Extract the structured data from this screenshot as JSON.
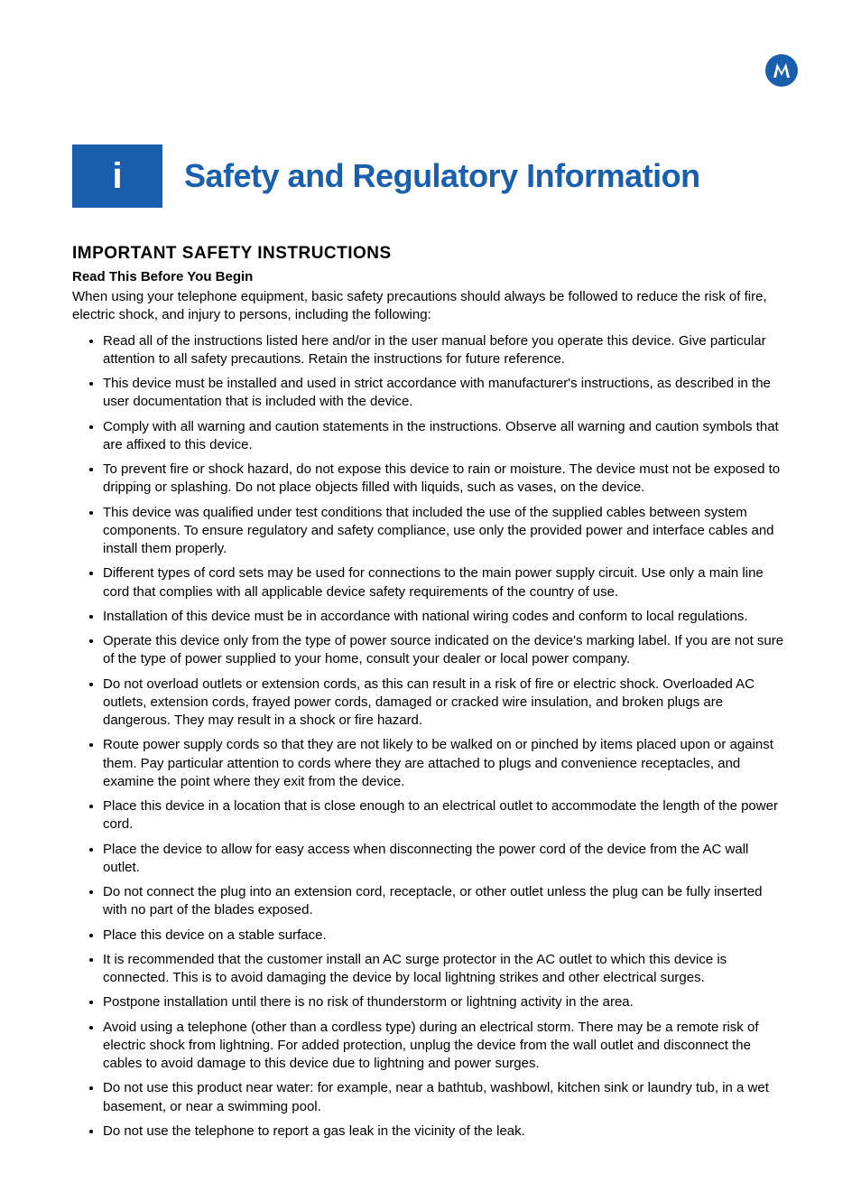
{
  "colors": {
    "brand_blue": "#1a5fad",
    "text_black": "#000000",
    "background": "#ffffff",
    "badge_text": "#ffffff"
  },
  "typography": {
    "title_fontsize": 36,
    "heading_fontsize": 19,
    "subheading_fontsize": 15,
    "body_fontsize": 15,
    "badge_fontsize": 40
  },
  "logo": {
    "name": "motorola-logo-icon"
  },
  "title_badge": {
    "letter": "i"
  },
  "main_title": "Safety and Regulatory Information",
  "section_heading": "IMPORTANT SAFETY INSTRUCTIONS",
  "sub_heading": "Read This Before You Begin",
  "intro_text": "When using your telephone equipment, basic safety precautions should always be followed to reduce the risk of fire, electric shock, and injury to persons, including the following:",
  "bullets": [
    "Read all of the instructions listed here and/or in the user manual before you operate this device. Give particular attention to all safety precautions. Retain the instructions for future reference.",
    "This device must be installed and used in strict accordance with manufacturer's instructions, as described in the user documentation that is included with the device.",
    "Comply with all warning and caution statements in the instructions. Observe all warning and caution symbols that are affixed to this device.",
    "To prevent fire or shock hazard, do not expose this device to rain or moisture. The device must not be exposed to dripping or splashing. Do not place objects filled with liquids, such as vases, on the device.",
    "This device was qualified under test conditions that included the use of the supplied cables between system components. To ensure regulatory and safety compliance, use only the provided power and interface cables and install them properly.",
    "Different types of cord sets may be used for connections to the main power supply circuit. Use only a main line cord that complies with all applicable device safety requirements of the country of use.",
    "Installation of this device must be in accordance with national wiring codes and conform to local regulations.",
    "Operate this device only from the type of power source indicated on the device's marking label. If you are not sure of the type of power supplied to your home, consult your dealer or local power company.",
    "Do not overload outlets or extension cords, as this can result in a risk of fire or electric shock. Overloaded AC outlets, extension cords, frayed power cords, damaged or cracked wire insulation, and broken plugs are dangerous. They may result in a shock or fire hazard.",
    "Route power supply cords so that they are not likely to be walked on or pinched by items placed upon or against them. Pay particular attention to cords where they are attached to plugs and convenience receptacles, and examine the point where they exit from the device.",
    "Place this device in a location that is close enough to an electrical outlet to accommodate the length of the power cord.",
    "Place the device to allow for easy access when disconnecting the power cord of the device from the AC wall outlet.",
    "Do not connect the plug into an extension cord, receptacle, or other outlet unless the plug can be fully inserted with no part of the blades exposed.",
    "Place this device on a stable surface.",
    "It is recommended that the customer install an AC surge protector in the AC outlet to which this device is connected. This is to avoid damaging the device by local lightning strikes and other electrical surges.",
    "Postpone installation until there is no risk of thunderstorm or lightning activity in the area.",
    "Avoid using a telephone (other than a cordless type) during an electrical storm. There may be a remote risk of electric shock from lightning. For added protection, unplug the device from the wall outlet and disconnect the cables to avoid damage to this device due to lightning and power surges.",
    "Do not use this product near water: for example, near a bathtub, washbowl, kitchen sink or laundry tub, in a wet basement, or near a swimming pool.",
    "Do not use the telephone to report a gas leak in the vicinity of the leak."
  ]
}
